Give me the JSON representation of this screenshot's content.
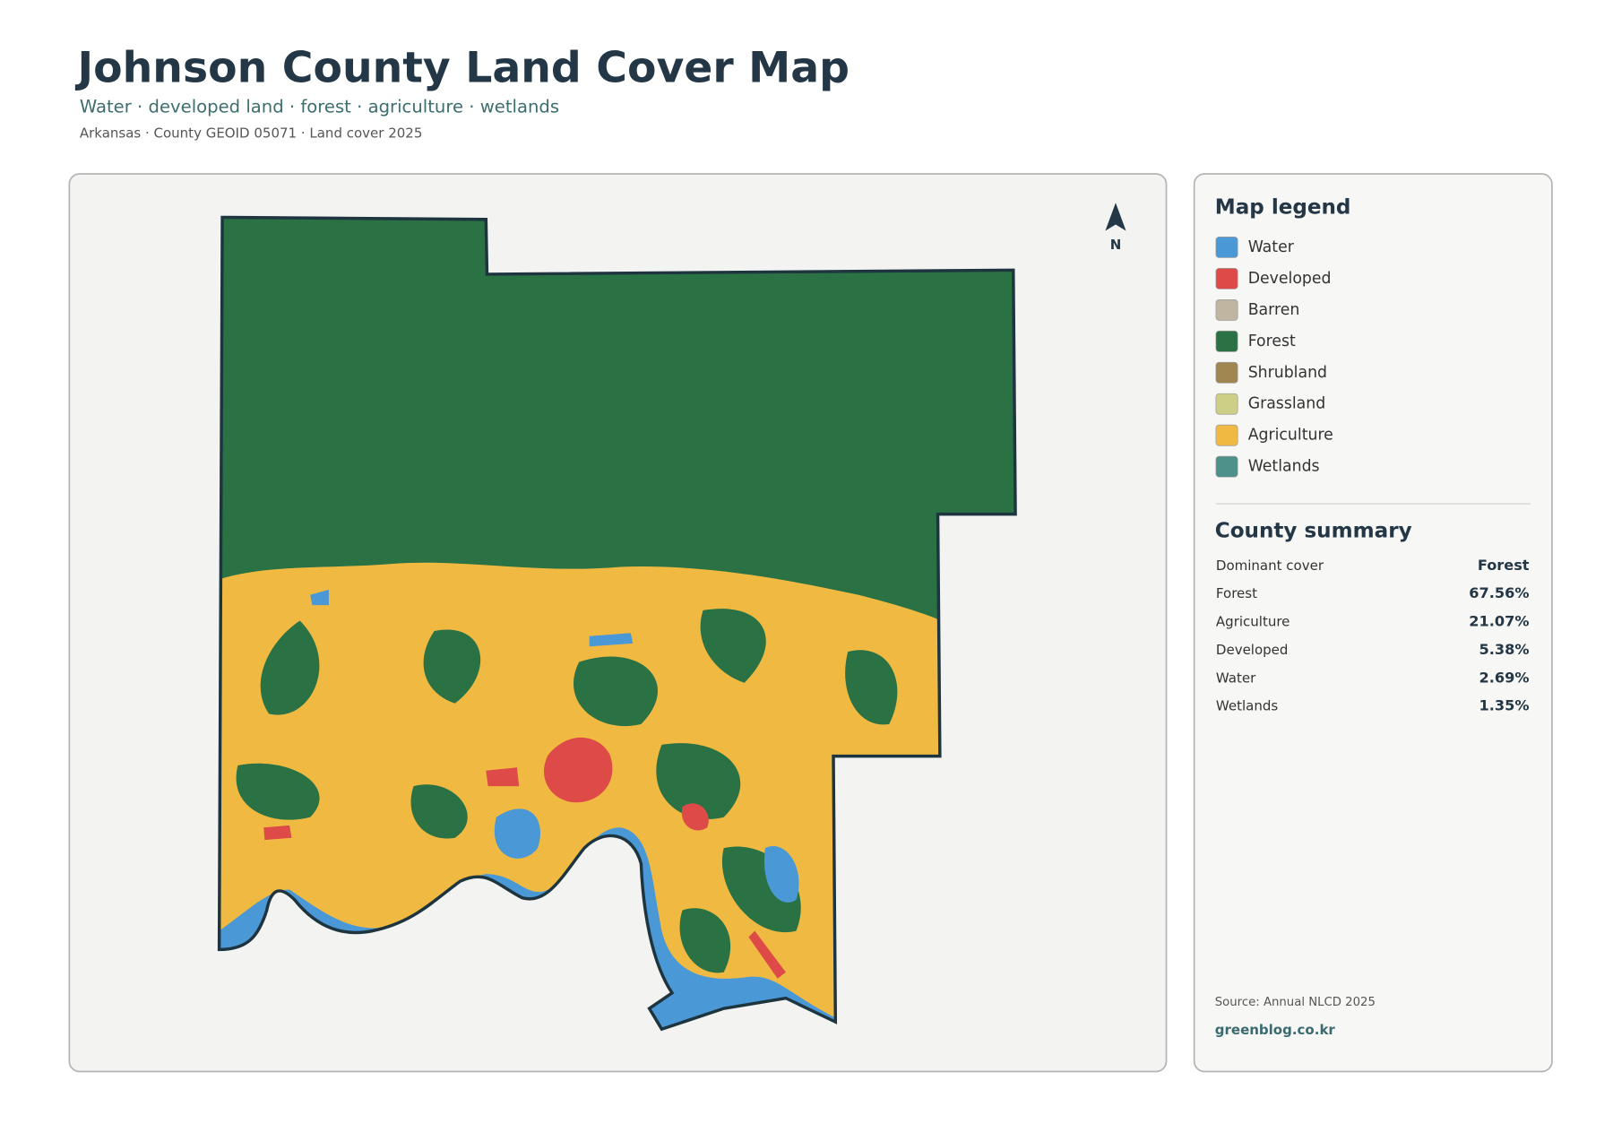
{
  "header": {
    "title": "Johnson County Land Cover Map",
    "subtitle": "Water · developed land · forest · agriculture · wetlands",
    "meta": "Arkansas · County GEOID 05071 · Land cover 2025"
  },
  "map": {
    "north": "N"
  },
  "legend": {
    "title": "Map legend",
    "items": [
      {
        "label": "Water",
        "color": "#4a98d6"
      },
      {
        "label": "Developed",
        "color": "#dd4a48"
      },
      {
        "label": "Barren",
        "color": "#bfb5a1"
      },
      {
        "label": "Forest",
        "color": "#2a7144"
      },
      {
        "label": "Shrubland",
        "color": "#a08651"
      },
      {
        "label": "Grassland",
        "color": "#cdcf86"
      },
      {
        "label": "Agriculture",
        "color": "#f0b942"
      },
      {
        "label": "Wetlands",
        "color": "#4d918a"
      }
    ]
  },
  "summary": {
    "title": "County summary",
    "rows": [
      {
        "label": "Dominant cover",
        "value": "Forest"
      },
      {
        "label": "Forest",
        "value": "67.56%"
      },
      {
        "label": "Agriculture",
        "value": "21.07%"
      },
      {
        "label": "Developed",
        "value": "5.38%"
      },
      {
        "label": "Water",
        "value": "2.69%"
      },
      {
        "label": "Wetlands",
        "value": "1.35%"
      }
    ]
  },
  "footer": {
    "source": "Source: Annual NLCD 2025",
    "site": "greenblog.co.kr"
  }
}
